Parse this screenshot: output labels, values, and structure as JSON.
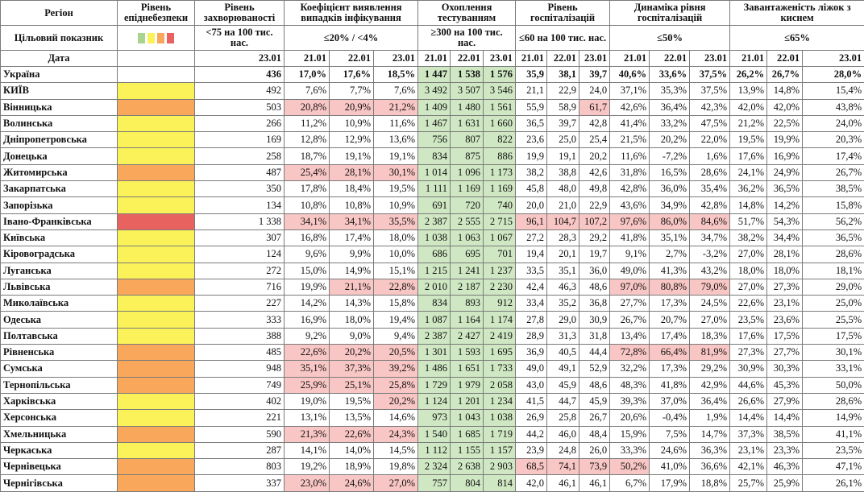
{
  "colors": {
    "yellow": "#fbf25a",
    "orange": "#f9a85b",
    "red": "#e8635f",
    "green": "#a9d48f",
    "bad": "#f8c6c4",
    "good": "#cfe8c3"
  },
  "headers": {
    "region": "Регіон",
    "level": "Рівень епіднебезпеки",
    "incidence": "Рівень захворюваності",
    "detection": "Коефіцієнт виявлення випадків інфікування",
    "testing": "Охоплення тестуванням",
    "hosp": "Рівень госпіталізацій",
    "dynamics": "Динаміка рівня госпіталізацій",
    "oxygen": "Завантаженість ліжок з киснем"
  },
  "targets": {
    "label": "Цільовий показник",
    "incidence": "<75 на 100 тис. нас.",
    "detection": "≤20% / <4%",
    "testing": "≥300 на 100 тис. нас.",
    "hosp": "≤60 на 100 тис. нас.",
    "dynamics": "≤50%",
    "oxygen": "≤65%"
  },
  "date_row": {
    "label": "Дата",
    "incidence": "23.01",
    "dates3": [
      "21.01",
      "22.01",
      "23.01"
    ]
  },
  "rows": [
    {
      "name": "Україна",
      "level": "none",
      "inc": "436",
      "det": [
        "17,0%",
        "17,6%",
        "18,5%"
      ],
      "test": [
        "1 447",
        "1 538",
        "1 576"
      ],
      "hosp": [
        "35,9",
        "38,1",
        "39,7"
      ],
      "dyn": [
        "40,6%",
        "33,6%",
        "37,5%"
      ],
      "oxy": [
        "26,2%",
        "26,7%",
        "28,0%"
      ]
    },
    {
      "name": "КИЇВ",
      "level": "yellow",
      "inc": "492",
      "det": [
        "7,6%",
        "7,7%",
        "7,6%"
      ],
      "test": [
        "3 492",
        "3 507",
        "3 546"
      ],
      "hosp": [
        "21,1",
        "22,9",
        "24,0"
      ],
      "dyn": [
        "37,1%",
        "35,3%",
        "37,5%"
      ],
      "oxy": [
        "13,9%",
        "14,8%",
        "15,4%"
      ]
    },
    {
      "name": "Вінницька",
      "level": "orange",
      "inc": "503",
      "det": [
        "20,8%",
        "20,9%",
        "21,2%"
      ],
      "test": [
        "1 409",
        "1 480",
        "1 561"
      ],
      "hosp": [
        "55,9",
        "58,9",
        "61,7"
      ],
      "dyn": [
        "42,6%",
        "36,4%",
        "42,3%"
      ],
      "oxy": [
        "42,0%",
        "42,0%",
        "43,8%"
      ]
    },
    {
      "name": "Волинська",
      "level": "yellow",
      "inc": "266",
      "det": [
        "11,2%",
        "10,9%",
        "11,6%"
      ],
      "test": [
        "1 467",
        "1 631",
        "1 660"
      ],
      "hosp": [
        "36,5",
        "39,7",
        "42,8"
      ],
      "dyn": [
        "41,4%",
        "33,2%",
        "47,5%"
      ],
      "oxy": [
        "21,2%",
        "22,5%",
        "24,0%"
      ]
    },
    {
      "name": "Дніпропетровська",
      "level": "yellow",
      "inc": "169",
      "det": [
        "12,8%",
        "12,9%",
        "13,6%"
      ],
      "test": [
        "756",
        "807",
        "822"
      ],
      "hosp": [
        "23,6",
        "25,0",
        "25,4"
      ],
      "dyn": [
        "21,5%",
        "20,2%",
        "22,0%"
      ],
      "oxy": [
        "19,5%",
        "19,9%",
        "20,3%"
      ]
    },
    {
      "name": "Донецька",
      "level": "yellow",
      "inc": "258",
      "det": [
        "18,7%",
        "19,1%",
        "19,1%"
      ],
      "test": [
        "834",
        "875",
        "886"
      ],
      "hosp": [
        "19,9",
        "19,1",
        "20,2"
      ],
      "dyn": [
        "11,6%",
        "-7,2%",
        "1,6%"
      ],
      "oxy": [
        "17,6%",
        "16,9%",
        "17,4%"
      ]
    },
    {
      "name": "Житомирська",
      "level": "orange",
      "inc": "487",
      "det": [
        "25,4%",
        "28,1%",
        "30,1%"
      ],
      "test": [
        "1 014",
        "1 096",
        "1 173"
      ],
      "hosp": [
        "38,2",
        "38,8",
        "42,6"
      ],
      "dyn": [
        "31,8%",
        "16,5%",
        "28,6%"
      ],
      "oxy": [
        "24,1%",
        "24,9%",
        "26,7%"
      ]
    },
    {
      "name": "Закарпатська",
      "level": "yellow",
      "inc": "350",
      "det": [
        "17,8%",
        "18,4%",
        "19,5%"
      ],
      "test": [
        "1 111",
        "1 169",
        "1 169"
      ],
      "hosp": [
        "45,8",
        "48,0",
        "49,8"
      ],
      "dyn": [
        "42,8%",
        "36,0%",
        "35,4%"
      ],
      "oxy": [
        "36,2%",
        "36,5%",
        "38,5%"
      ]
    },
    {
      "name": "Запорізька",
      "level": "yellow",
      "inc": "134",
      "det": [
        "10,8%",
        "10,8%",
        "10,9%"
      ],
      "test": [
        "691",
        "720",
        "740"
      ],
      "hosp": [
        "20,0",
        "21,0",
        "22,9"
      ],
      "dyn": [
        "43,6%",
        "34,9%",
        "42,8%"
      ],
      "oxy": [
        "14,8%",
        "14,2%",
        "15,8%"
      ]
    },
    {
      "name": "Івано-Франківська",
      "level": "red",
      "inc": "1 338",
      "det": [
        "34,1%",
        "34,1%",
        "35,5%"
      ],
      "test": [
        "2 387",
        "2 555",
        "2 715"
      ],
      "hosp": [
        "96,1",
        "104,7",
        "107,2"
      ],
      "dyn": [
        "97,6%",
        "86,0%",
        "84,6%"
      ],
      "oxy": [
        "51,7%",
        "54,3%",
        "56,2%"
      ]
    },
    {
      "name": "Київська",
      "level": "yellow",
      "inc": "307",
      "det": [
        "16,8%",
        "17,4%",
        "18,0%"
      ],
      "test": [
        "1 038",
        "1 063",
        "1 067"
      ],
      "hosp": [
        "27,2",
        "28,3",
        "29,2"
      ],
      "dyn": [
        "41,8%",
        "35,1%",
        "34,7%"
      ],
      "oxy": [
        "38,2%",
        "34,4%",
        "36,5%"
      ]
    },
    {
      "name": "Кіровоградська",
      "level": "yellow",
      "inc": "124",
      "det": [
        "9,6%",
        "9,9%",
        "10,0%"
      ],
      "test": [
        "686",
        "695",
        "701"
      ],
      "hosp": [
        "19,4",
        "20,1",
        "19,7"
      ],
      "dyn": [
        "9,1%",
        "2,7%",
        "-3,2%"
      ],
      "oxy": [
        "27,0%",
        "28,1%",
        "28,6%"
      ]
    },
    {
      "name": "Луганська",
      "level": "yellow",
      "inc": "272",
      "det": [
        "15,0%",
        "14,9%",
        "15,1%"
      ],
      "test": [
        "1 215",
        "1 241",
        "1 237"
      ],
      "hosp": [
        "33,5",
        "35,1",
        "36,0"
      ],
      "dyn": [
        "49,0%",
        "41,3%",
        "43,2%"
      ],
      "oxy": [
        "18,0%",
        "18,0%",
        "18,1%"
      ]
    },
    {
      "name": "Львівська",
      "level": "orange",
      "inc": "716",
      "det": [
        "19,9%",
        "21,1%",
        "22,8%"
      ],
      "test": [
        "2 010",
        "2 187",
        "2 230"
      ],
      "hosp": [
        "42,4",
        "46,3",
        "48,6"
      ],
      "dyn": [
        "97,0%",
        "80,8%",
        "79,0%"
      ],
      "oxy": [
        "27,0%",
        "27,3%",
        "29,0%"
      ]
    },
    {
      "name": "Миколаївська",
      "level": "yellow",
      "inc": "227",
      "det": [
        "14,2%",
        "14,3%",
        "15,8%"
      ],
      "test": [
        "834",
        "893",
        "912"
      ],
      "hosp": [
        "33,4",
        "35,2",
        "36,8"
      ],
      "dyn": [
        "27,7%",
        "17,3%",
        "24,5%"
      ],
      "oxy": [
        "22,6%",
        "23,1%",
        "25,0%"
      ]
    },
    {
      "name": "Одеська",
      "level": "yellow",
      "inc": "333",
      "det": [
        "16,9%",
        "18,0%",
        "19,4%"
      ],
      "test": [
        "1 087",
        "1 164",
        "1 174"
      ],
      "hosp": [
        "27,8",
        "29,0",
        "30,9"
      ],
      "dyn": [
        "26,7%",
        "20,7%",
        "27,0%"
      ],
      "oxy": [
        "23,5%",
        "23,6%",
        "25,5%"
      ]
    },
    {
      "name": "Полтавська",
      "level": "yellow",
      "inc": "388",
      "det": [
        "9,2%",
        "9,0%",
        "9,4%"
      ],
      "test": [
        "2 387",
        "2 427",
        "2 419"
      ],
      "hosp": [
        "28,9",
        "31,3",
        "31,8"
      ],
      "dyn": [
        "13,4%",
        "17,4%",
        "18,3%"
      ],
      "oxy": [
        "17,6%",
        "17,5%",
        "17,5%"
      ]
    },
    {
      "name": "Рівненська",
      "level": "orange",
      "inc": "485",
      "det": [
        "22,6%",
        "20,2%",
        "20,5%"
      ],
      "test": [
        "1 301",
        "1 593",
        "1 695"
      ],
      "hosp": [
        "36,9",
        "40,5",
        "44,4"
      ],
      "dyn": [
        "72,8%",
        "66,4%",
        "81,9%"
      ],
      "oxy": [
        "27,3%",
        "27,7%",
        "30,1%"
      ]
    },
    {
      "name": "Сумська",
      "level": "orange",
      "inc": "948",
      "det": [
        "35,1%",
        "37,3%",
        "39,2%"
      ],
      "test": [
        "1 486",
        "1 651",
        "1 733"
      ],
      "hosp": [
        "49,0",
        "49,1",
        "52,9"
      ],
      "dyn": [
        "32,2%",
        "17,3%",
        "29,2%"
      ],
      "oxy": [
        "30,9%",
        "30,3%",
        "33,1%"
      ]
    },
    {
      "name": "Тернопільська",
      "level": "orange",
      "inc": "749",
      "det": [
        "25,9%",
        "25,1%",
        "25,8%"
      ],
      "test": [
        "1 729",
        "1 979",
        "2 058"
      ],
      "hosp": [
        "43,0",
        "45,9",
        "48,6"
      ],
      "dyn": [
        "48,3%",
        "41,8%",
        "42,9%"
      ],
      "oxy": [
        "44,6%",
        "45,3%",
        "50,0%"
      ]
    },
    {
      "name": "Харківська",
      "level": "yellow",
      "inc": "402",
      "det": [
        "19,0%",
        "19,5%",
        "20,2%"
      ],
      "test": [
        "1 124",
        "1 201",
        "1 234"
      ],
      "hosp": [
        "41,5",
        "44,7",
        "45,9"
      ],
      "dyn": [
        "39,3%",
        "37,0%",
        "36,4%"
      ],
      "oxy": [
        "26,6%",
        "27,9%",
        "28,6%"
      ]
    },
    {
      "name": "Херсонська",
      "level": "yellow",
      "inc": "221",
      "det": [
        "13,1%",
        "13,5%",
        "14,6%"
      ],
      "test": [
        "973",
        "1 043",
        "1 038"
      ],
      "hosp": [
        "26,9",
        "25,8",
        "26,7"
      ],
      "dyn": [
        "20,6%",
        "-0,4%",
        "1,9%"
      ],
      "oxy": [
        "14,4%",
        "14,4%",
        "14,9%"
      ]
    },
    {
      "name": "Хмельницька",
      "level": "orange",
      "inc": "590",
      "det": [
        "21,3%",
        "22,6%",
        "24,3%"
      ],
      "test": [
        "1 540",
        "1 685",
        "1 719"
      ],
      "hosp": [
        "44,2",
        "46,0",
        "48,4"
      ],
      "dyn": [
        "15,9%",
        "7,5%",
        "14,7%"
      ],
      "oxy": [
        "37,3%",
        "38,5%",
        "41,1%"
      ]
    },
    {
      "name": "Черкаська",
      "level": "yellow",
      "inc": "287",
      "det": [
        "14,1%",
        "14,0%",
        "14,5%"
      ],
      "test": [
        "1 112",
        "1 155",
        "1 157"
      ],
      "hosp": [
        "23,9",
        "24,8",
        "26,0"
      ],
      "dyn": [
        "33,3%",
        "24,6%",
        "36,3%"
      ],
      "oxy": [
        "23,1%",
        "23,3%",
        "23,5%"
      ]
    },
    {
      "name": "Чернівецька",
      "level": "orange",
      "inc": "803",
      "det": [
        "19,2%",
        "18,9%",
        "19,8%"
      ],
      "test": [
        "2 324",
        "2 638",
        "2 903"
      ],
      "hosp": [
        "68,5",
        "74,1",
        "73,9"
      ],
      "dyn": [
        "50,2%",
        "41,0%",
        "36,6%"
      ],
      "oxy": [
        "42,1%",
        "46,3%",
        "47,1%"
      ]
    },
    {
      "name": "Чернігівська",
      "level": "orange",
      "inc": "337",
      "det": [
        "23,0%",
        "24,6%",
        "27,0%"
      ],
      "test": [
        "757",
        "804",
        "814"
      ],
      "hosp": [
        "42,0",
        "46,1",
        "46,1"
      ],
      "dyn": [
        "6,7%",
        "17,9%",
        "18,8%"
      ],
      "oxy": [
        "25,7%",
        "25,9%",
        "26,1%"
      ]
    }
  ]
}
